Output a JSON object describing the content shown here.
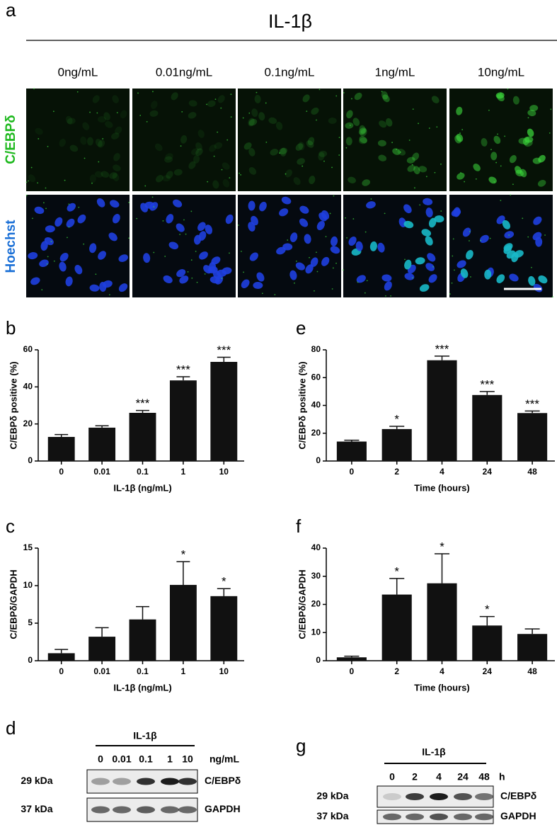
{
  "panel_a": {
    "label": "a",
    "title": "IL-1β",
    "columns": [
      "0ng/mL",
      "0.01ng/mL",
      "0.1ng/mL",
      "1ng/mL",
      "10ng/mL"
    ],
    "rows": [
      "C/EBPδ",
      "Hoechst"
    ]
  },
  "chart_data": [
    {
      "type": "bar",
      "panel": "b",
      "ylabel": "C/EBPδ positive (%)",
      "xlabel": "IL-1β (ng/mL)",
      "categories": [
        "0",
        "0.01",
        "0.1",
        "1",
        "10"
      ],
      "values": [
        13,
        18,
        26,
        43.5,
        53.5
      ],
      "errors": [
        1.3,
        1,
        1.3,
        2,
        2.5
      ],
      "annotations": [
        null,
        null,
        "***",
        "***",
        "***"
      ],
      "color": "#111111",
      "ylim": [
        0,
        60
      ],
      "yticks": [
        0,
        20,
        40,
        60
      ]
    },
    {
      "type": "bar",
      "panel": "c",
      "ylabel": "C/EBPδ/GAPDH",
      "xlabel": "IL-1β (ng/mL)",
      "categories": [
        "0",
        "0.01",
        "0.1",
        "1",
        "10"
      ],
      "values": [
        1,
        3.2,
        5.5,
        10.1,
        8.6
      ],
      "errors": [
        0.5,
        1.2,
        1.7,
        3.1,
        1
      ],
      "annotations": [
        null,
        null,
        null,
        "*",
        "*"
      ],
      "color": "#111111",
      "ylim": [
        0,
        15
      ],
      "yticks": [
        0,
        5,
        10,
        15
      ]
    },
    {
      "type": "bar",
      "panel": "e",
      "ylabel": "C/EBPδ positive (%)",
      "xlabel": "Time (hours)",
      "categories": [
        "0",
        "2",
        "4",
        "24",
        "48"
      ],
      "values": [
        14,
        23,
        72.5,
        47.5,
        34.5
      ],
      "errors": [
        1,
        2,
        3,
        2.5,
        1.5
      ],
      "annotations": [
        null,
        "*",
        "***",
        "***",
        "***"
      ],
      "color": "#111111",
      "ylim": [
        0,
        80
      ],
      "yticks": [
        0,
        20,
        40,
        60,
        80
      ]
    },
    {
      "type": "bar",
      "panel": "f",
      "ylabel": "C/EBPδ/GAPDH",
      "xlabel": "Time (hours)",
      "categories": [
        "0",
        "2",
        "4",
        "24",
        "48"
      ],
      "values": [
        1.2,
        23.5,
        27.5,
        12.5,
        9.5
      ],
      "errors": [
        0.4,
        5.7,
        10.5,
        3.2,
        1.8
      ],
      "annotations": [
        null,
        "*",
        "*",
        "*",
        null
      ],
      "color": "#111111",
      "ylim": [
        0,
        40
      ],
      "yticks": [
        0,
        10,
        20,
        30,
        40
      ]
    }
  ],
  "blots": [
    {
      "label": "d",
      "treatment": "IL-1β",
      "lanes": [
        "0",
        "0.01",
        "0.1",
        "1",
        "10"
      ],
      "unit": "ng/mL",
      "bands": [
        {
          "size": "29 kDa",
          "protein": "C/EBPδ"
        },
        {
          "size": "37 kDa",
          "protein": "GAPDH"
        }
      ]
    },
    {
      "label": "g",
      "treatment": "IL-1β",
      "lanes": [
        "0",
        "2",
        "4",
        "24",
        "48"
      ],
      "unit": "h",
      "bands": [
        {
          "size": "29 kDa",
          "protein": "C/EBPδ"
        },
        {
          "size": "37 kDa",
          "protein": "GAPDH"
        }
      ]
    }
  ]
}
